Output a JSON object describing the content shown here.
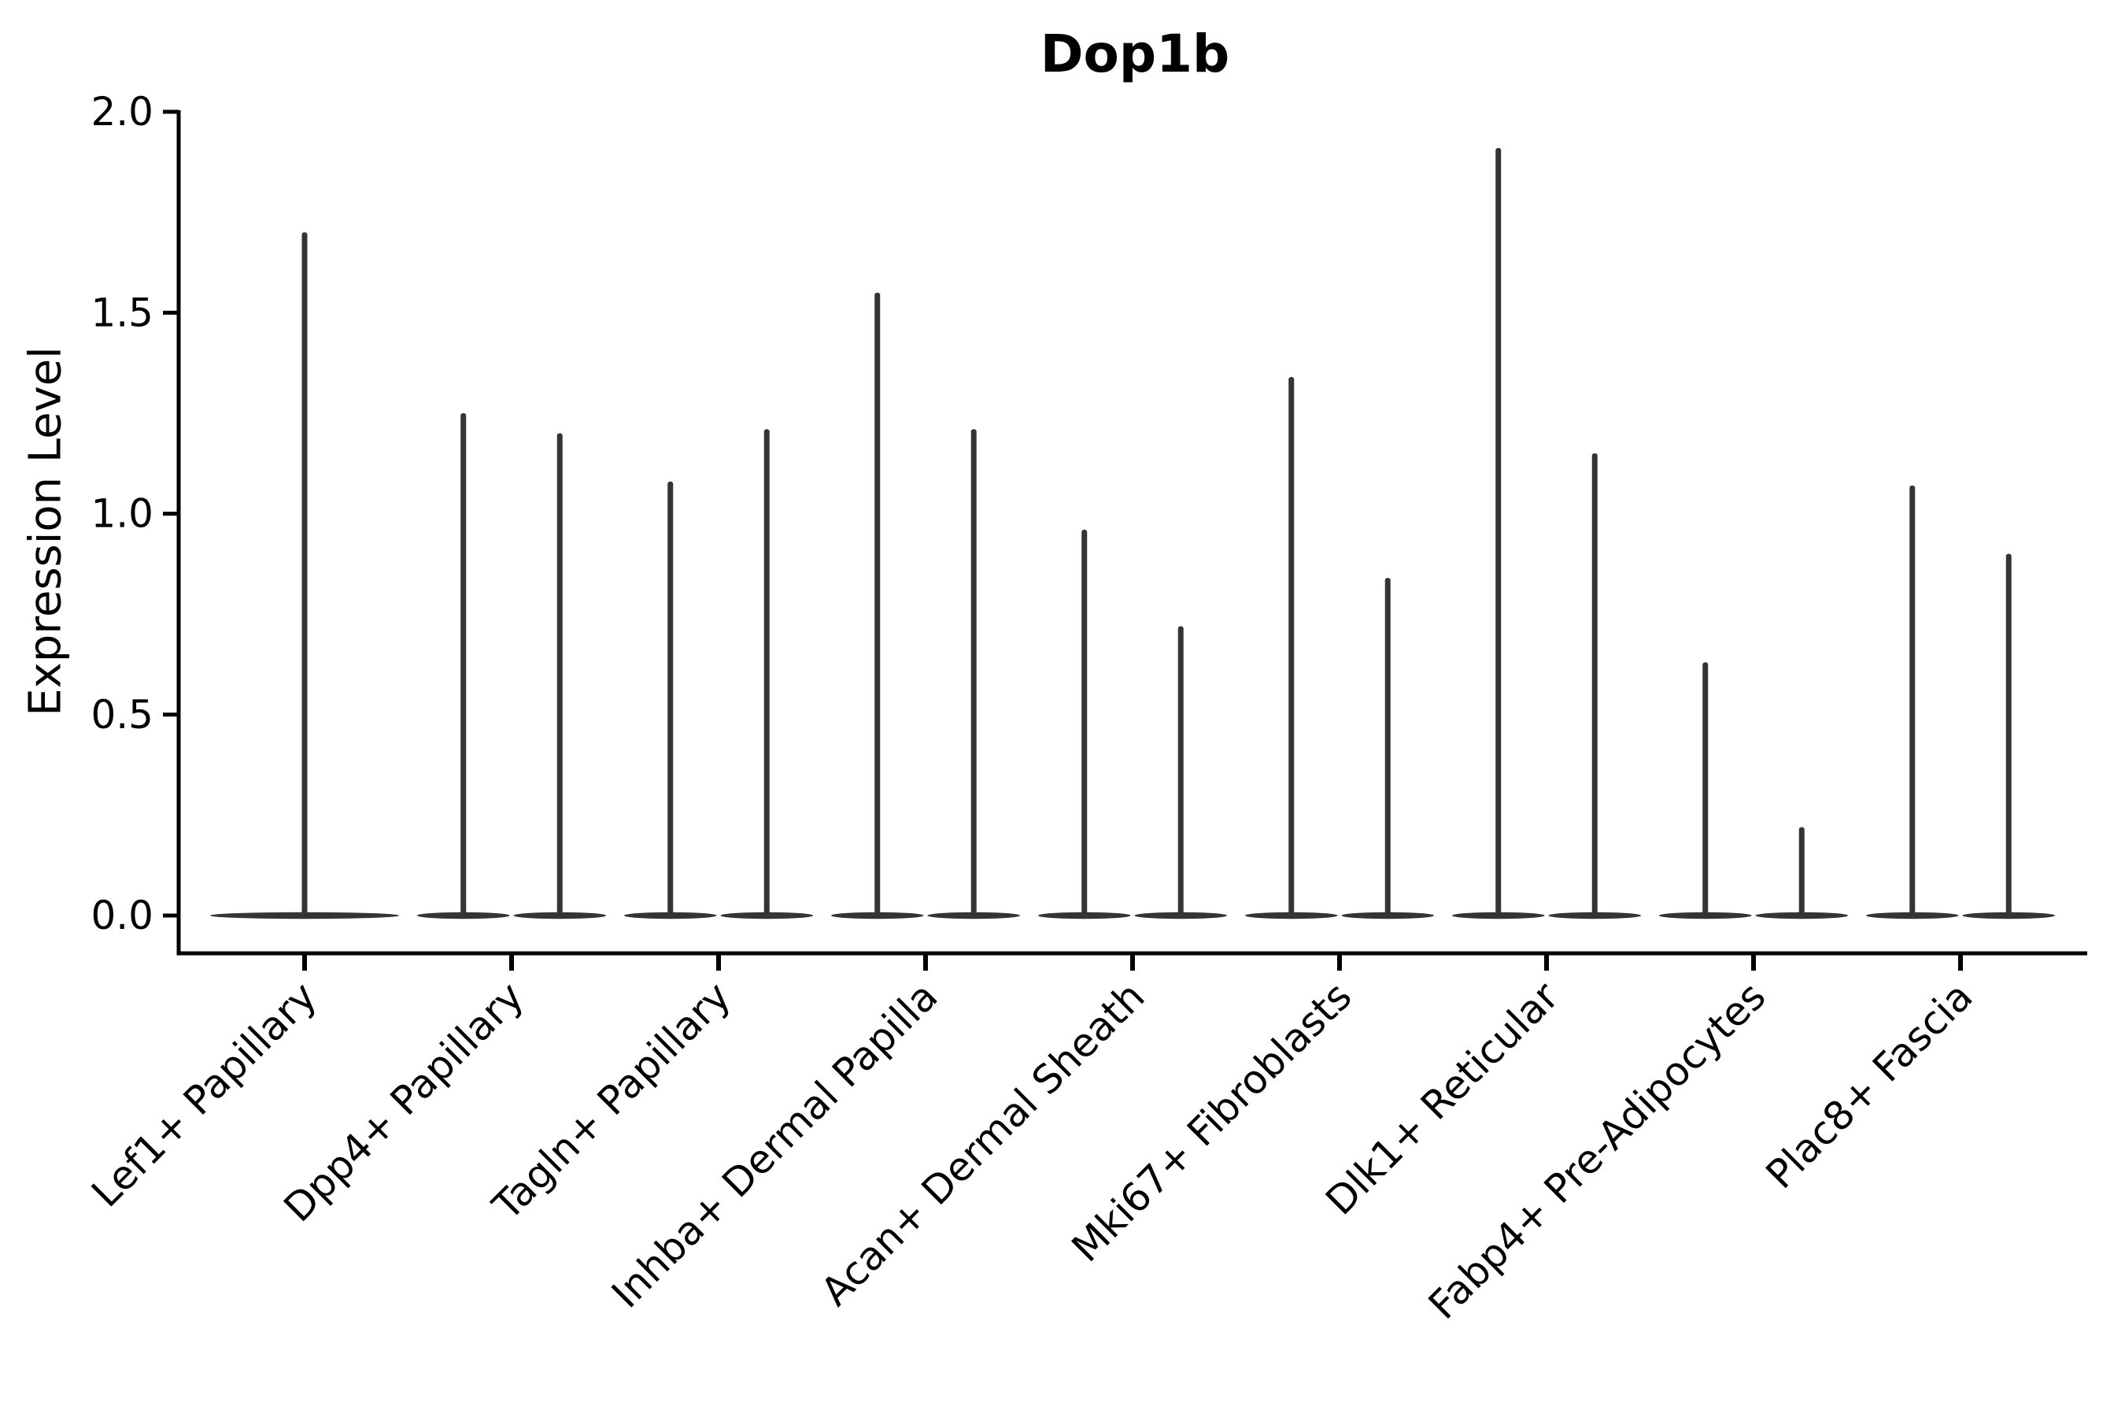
{
  "chart_data": {
    "type": "violin",
    "title": "Dop1b",
    "ylabel": "Expression Level",
    "xlabel": "",
    "ylim": [
      0.0,
      2.0
    ],
    "yticks": [
      0.0,
      0.5,
      1.0,
      1.5,
      2.0
    ],
    "ytick_labels": [
      "0.0",
      "0.5",
      "1.0",
      "1.5",
      "2.0"
    ],
    "grid": false,
    "legend_position": "none",
    "categories": [
      "Lef1+ Papillary",
      "Dpp4+ Papillary",
      "Tagln+ Papillary",
      "Inhba+ Dermal Papilla",
      "Acan+ Dermal Sheath",
      "Mki67+ Fibroblasts",
      "Dlk1+ Reticular",
      "Fabp4+ Pre-Adipocytes",
      "Plac8+ Fascia"
    ],
    "violin_baseline_value": 0.0,
    "violin_max_per_category": [
      [
        1.7
      ],
      [
        1.25,
        1.2
      ],
      [
        1.08,
        1.21
      ],
      [
        1.55,
        1.21
      ],
      [
        0.96,
        0.72
      ],
      [
        1.34,
        0.84
      ],
      [
        1.91,
        1.15
      ],
      [
        0.63,
        0.22
      ],
      [
        1.07,
        0.9
      ]
    ],
    "colors": {
      "violin": "#343434",
      "axis": "#000000",
      "background": "#ffffff"
    }
  }
}
